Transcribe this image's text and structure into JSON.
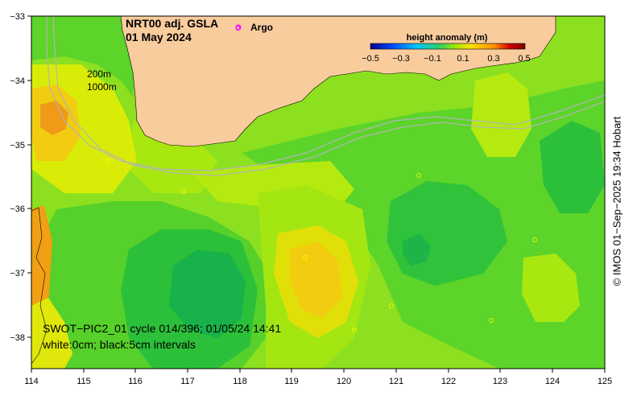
{
  "title": {
    "line1": "NRT00 adj. GSLA",
    "line2": "01 May 2024"
  },
  "legend": {
    "argo_marker": "o",
    "argo_label": "Argo"
  },
  "colorbar": {
    "title": "height anomaly (m)",
    "ticks": [
      "−0.5",
      "−0.3",
      "−0.1",
      "0.1",
      "0.3",
      "0.5"
    ],
    "colors": [
      "#00008b",
      "#0050ff",
      "#00c8ff",
      "#30d060",
      "#b8f000",
      "#ffe000",
      "#ff9000",
      "#d00000",
      "#800000"
    ]
  },
  "contours": {
    "label_200m": "200m",
    "label_1000m": "1000m"
  },
  "annotations": {
    "line1": "SWOT−PIC2_01 cycle 014/396; 01/05/24 14:41",
    "line2": "white:0cm; black:5cm intervals"
  },
  "axes": {
    "lon_ticks": [
      "114",
      "115",
      "116",
      "117",
      "118",
      "119",
      "120",
      "121",
      "122",
      "123",
      "124",
      "125"
    ],
    "lat_ticks": [
      "−33",
      "−34",
      "−35",
      "−36",
      "−37",
      "−38"
    ]
  },
  "copyright": "© IMOS 01−Sep−2025 19:34 Hobart",
  "colors": {
    "land": "#f9cc9e",
    "ocean_base": "#8ce020",
    "argo": "#ff00ff"
  }
}
